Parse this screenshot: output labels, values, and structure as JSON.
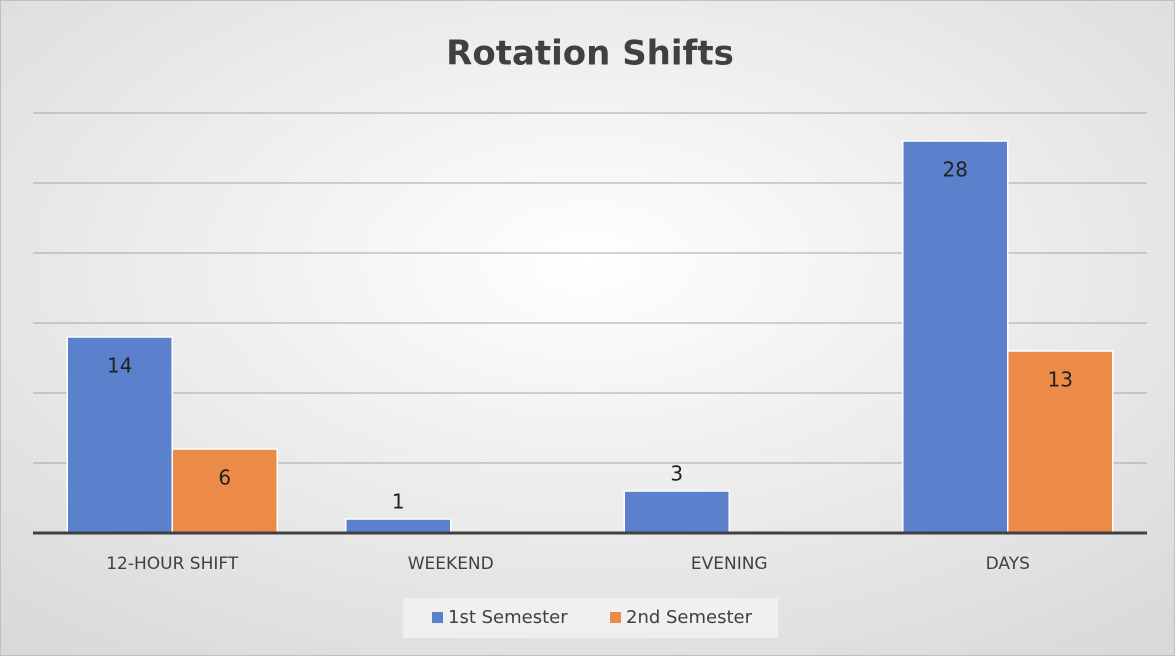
{
  "chart_data": {
    "type": "bar",
    "title": "Rotation Shifts",
    "categories": [
      "12-HOUR SHIFT",
      "WEEKEND",
      "EVENING",
      "DAYS"
    ],
    "series": [
      {
        "name": "1st Semester",
        "color": "#5b81cc",
        "values": [
          14,
          1,
          3,
          28
        ]
      },
      {
        "name": "2nd Semester",
        "color": "#ec8a48",
        "values": [
          6,
          null,
          null,
          13
        ]
      }
    ],
    "ylim": [
      0,
      30
    ],
    "yticks": [
      0,
      5,
      10,
      15,
      20,
      25,
      30
    ],
    "grid": true,
    "legend": "bottom"
  }
}
